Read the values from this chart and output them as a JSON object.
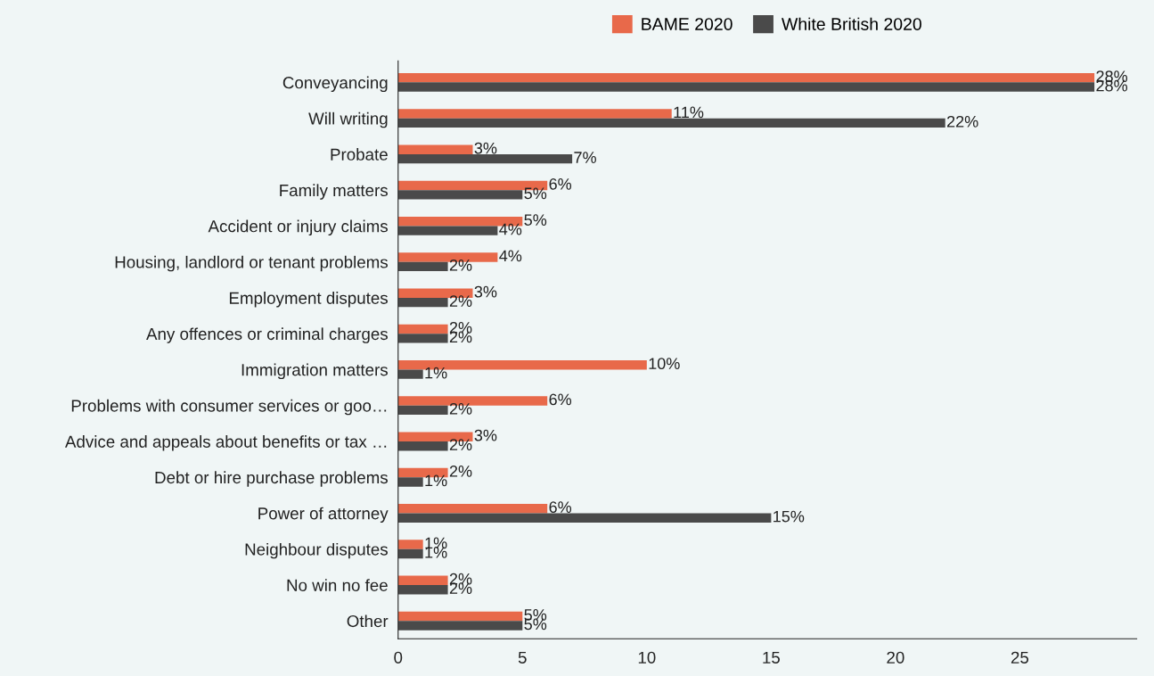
{
  "chart_data": {
    "type": "bar",
    "orientation": "horizontal",
    "categories": [
      "Conveyancing",
      "Will writing",
      "Probate",
      "Family matters",
      "Accident or injury claims",
      "Housing, landlord or tenant problems",
      "Employment disputes",
      "Any offences or criminal charges",
      "Immigration matters",
      "Problems with consumer services or goo…",
      "Advice and appeals about benefits or tax …",
      "Debt or hire purchase problems",
      "Power of attorney",
      "Neighbour disputes",
      "No win no fee",
      "Other"
    ],
    "series": [
      {
        "name": "BAME 2020",
        "color": "#e8694a",
        "values": [
          28,
          11,
          3,
          6,
          5,
          4,
          3,
          2,
          10,
          6,
          3,
          2,
          6,
          1,
          2,
          5
        ],
        "value_labels": [
          "28%",
          "11%",
          "3%",
          "6%",
          "5%",
          "4%",
          "3%",
          "2%",
          "10%",
          "6%",
          "3%",
          "2%",
          "6%",
          "1%",
          "2%",
          "5%"
        ]
      },
      {
        "name": "White British 2020",
        "color": "#4a4a4a",
        "values": [
          28,
          22,
          7,
          5,
          4,
          2,
          2,
          2,
          1,
          2,
          2,
          1,
          15,
          1,
          2,
          5
        ],
        "value_labels": [
          "28%",
          "22%",
          "7%",
          "5%",
          "4%",
          "2%",
          "2%",
          "2%",
          "1%",
          "2%",
          "2%",
          "1%",
          "15%",
          "1%",
          "2%",
          "5%"
        ]
      }
    ],
    "xlim": [
      0,
      29.7
    ],
    "xticks": [
      0,
      5,
      10,
      15,
      20,
      25
    ],
    "grid": false,
    "legend": "top"
  }
}
